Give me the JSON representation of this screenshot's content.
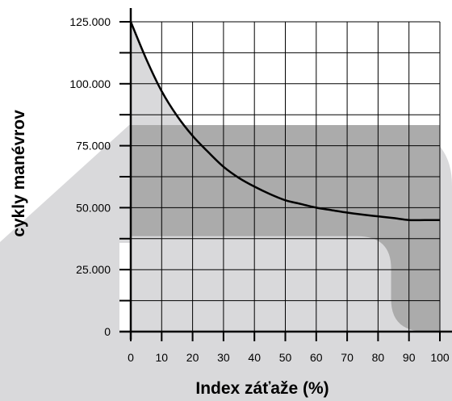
{
  "chart_data": {
    "type": "line",
    "xlabel": "Index záťaže (%)",
    "ylabel": "cykly manévrov",
    "xlim": [
      0,
      100
    ],
    "ylim": [
      0,
      125000
    ],
    "x_ticks": [
      "0",
      "10",
      "20",
      "30",
      "40",
      "50",
      "60",
      "70",
      "80",
      "90",
      "100"
    ],
    "y_ticks": [
      "0",
      "25.000",
      "50.000",
      "75.000",
      "100.000",
      "125.000"
    ],
    "grid": true,
    "series": [
      {
        "x": [
          0,
          5,
          10,
          15,
          20,
          25,
          30,
          35,
          40,
          45,
          50,
          55,
          60,
          65,
          70,
          75,
          80,
          85,
          90,
          95,
          100
        ],
        "y": [
          125000,
          110000,
          97000,
          87000,
          79000,
          72500,
          66500,
          62000,
          58500,
          55500,
          53000,
          51500,
          50000,
          49000,
          48000,
          47200,
          46500,
          45800,
          45000,
          45000,
          45000
        ]
      }
    ],
    "colors": {
      "curve": "#000000",
      "light_band": "#d9d9db",
      "dark_region": "#ababab",
      "grid": "#000000"
    }
  }
}
